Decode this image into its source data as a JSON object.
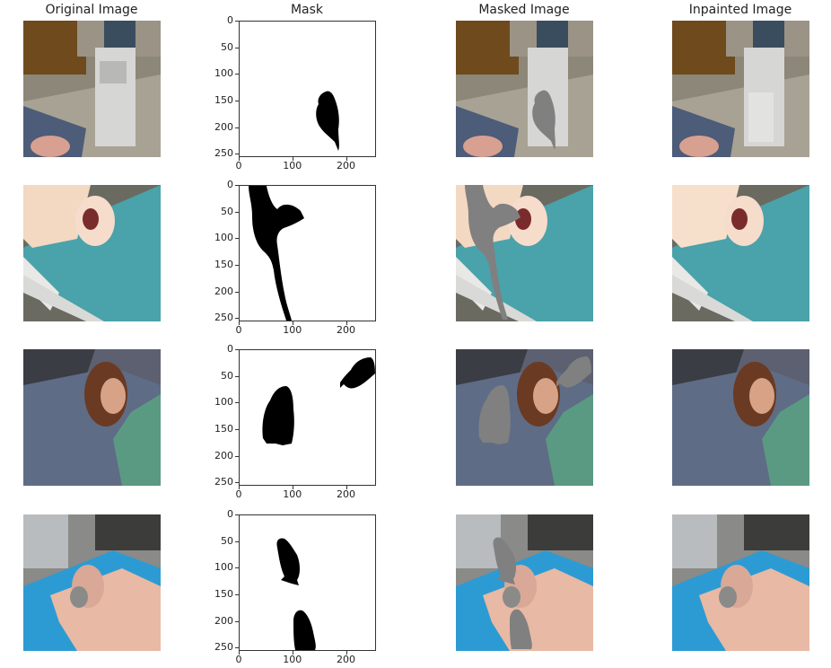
{
  "columns": {
    "original": "Original Image",
    "mask": "Mask",
    "masked": "Masked Image",
    "inpainted": "Inpainted Image"
  },
  "mask_axis": {
    "y_ticks": [
      "0",
      "50",
      "100",
      "150",
      "200",
      "250"
    ],
    "x_ticks": [
      "0",
      "100",
      "200"
    ]
  },
  "colors": {
    "mask_fill": "#000000",
    "masked_fill": "#808080"
  }
}
